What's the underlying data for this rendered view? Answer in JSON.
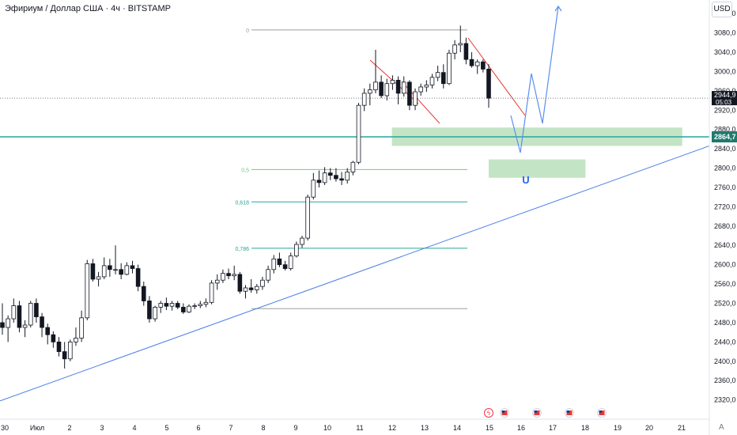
{
  "header": {
    "title": "Эфириум / Доллар США · 4ч · BITSTAMP",
    "currency": "USD",
    "auto_label": "A"
  },
  "colors": {
    "up_candle": "#ffffff",
    "down_candle": "#131722",
    "trend_line": "#4a7ee8",
    "current_line": "#26a69a",
    "fib_line": "#7cc47c",
    "zone_fill": "#a5d6a7",
    "resistance_line": "#e53935",
    "projection": "#5a8ff0"
  },
  "chart_data": {
    "type": "candlestick",
    "symbol": "Эфириум / Доллар США",
    "timeframe": "4ч",
    "exchange": "BITSTAMP",
    "yaxis": {
      "ticks": [
        "3120,0",
        "3080,0",
        "3040,0",
        "3000,0",
        "2960,0",
        "2920,0",
        "2880,0",
        "2840,0",
        "2800,0",
        "2760,0",
        "2720,0",
        "2680,0",
        "2640,0",
        "2600,0",
        "2560,0",
        "2520,0",
        "2480,0",
        "2440,0",
        "2400,0",
        "2360,0",
        "2320,0"
      ],
      "range": [
        2310,
        3140
      ]
    },
    "xaxis": {
      "ticks": [
        "30",
        "Июл",
        "2",
        "3",
        "4",
        "5",
        "6",
        "7",
        "8",
        "9",
        "10",
        "11",
        "12",
        "13",
        "14",
        "15",
        "16",
        "17",
        "18",
        "19",
        "20",
        "21"
      ]
    },
    "last_price": {
      "value": "2944,9",
      "countdown": "05:03"
    },
    "horizontal_level": "2864,7",
    "fib_levels": [
      {
        "label": "0",
        "price": 3086
      },
      {
        "label": "0,5",
        "price": 2797
      },
      {
        "label": "0,618",
        "price": 2730
      },
      {
        "label": "0,786",
        "price": 2634
      },
      {
        "label": "",
        "price": 2509
      }
    ],
    "zones": [
      {
        "from_date": "Jul 12",
        "to_date": "Jul 21",
        "low": 2846,
        "high": 2884
      },
      {
        "from_date": "Jul 15",
        "to_date": "Jul 18",
        "low": 2780,
        "high": 2818
      }
    ],
    "trend_line": {
      "points": [
        [
          "Jun 29",
          2326
        ],
        [
          "Jul 21",
          2846
        ]
      ]
    },
    "resistance_lines": [
      {
        "points": [
          [
            "Jul 11",
            3044
          ],
          [
            "Jul 12",
            2992
          ]
        ]
      },
      {
        "points": [
          [
            "Jul 12",
            2995
          ],
          [
            "Jul 14",
            2956
          ]
        ]
      },
      {
        "points": [
          [
            "Jul 14",
            3092
          ],
          [
            "Jul 16",
            2958
          ]
        ]
      }
    ],
    "projection_path": [
      [
        "Jul 15",
        2950
      ],
      [
        "Jul 16",
        2858
      ],
      [
        "Jul 16",
        3015
      ],
      [
        "Jul 16",
        2910
      ],
      [
        "Jul 17",
        3135
      ]
    ],
    "event_icons": [
      "lightning",
      "flag-us",
      "flag-us",
      "flag-us",
      "flag-us"
    ],
    "candles": [
      [
        2480,
        2520,
        2455,
        2470
      ],
      [
        2470,
        2495,
        2440,
        2488
      ],
      [
        2488,
        2530,
        2480,
        2515
      ],
      [
        2515,
        2525,
        2460,
        2470
      ],
      [
        2470,
        2485,
        2450,
        2475
      ],
      [
        2475,
        2525,
        2470,
        2520
      ],
      [
        2520,
        2530,
        2480,
        2492
      ],
      [
        2492,
        2500,
        2450,
        2470
      ],
      [
        2470,
        2478,
        2435,
        2455
      ],
      [
        2455,
        2462,
        2428,
        2440
      ],
      [
        2440,
        2450,
        2410,
        2420
      ],
      [
        2420,
        2440,
        2385,
        2405
      ],
      [
        2405,
        2445,
        2400,
        2440
      ],
      [
        2440,
        2470,
        2432,
        2448
      ],
      [
        2448,
        2505,
        2440,
        2490
      ],
      [
        2490,
        2610,
        2485,
        2602
      ],
      [
        2602,
        2612,
        2565,
        2570
      ],
      [
        2570,
        2585,
        2555,
        2575
      ],
      [
        2575,
        2615,
        2570,
        2598
      ],
      [
        2598,
        2612,
        2575,
        2590
      ],
      [
        2590,
        2640,
        2580,
        2590
      ],
      [
        2590,
        2603,
        2570,
        2580
      ],
      [
        2580,
        2605,
        2578,
        2598
      ],
      [
        2598,
        2608,
        2582,
        2592
      ],
      [
        2592,
        2600,
        2545,
        2555
      ],
      [
        2555,
        2565,
        2515,
        2525
      ],
      [
        2525,
        2535,
        2480,
        2488
      ],
      [
        2488,
        2515,
        2482,
        2512
      ],
      [
        2512,
        2525,
        2500,
        2520
      ],
      [
        2520,
        2532,
        2506,
        2514
      ],
      [
        2514,
        2525,
        2505,
        2520
      ],
      [
        2520,
        2525,
        2508,
        2512
      ],
      [
        2512,
        2520,
        2498,
        2502
      ],
      [
        2502,
        2518,
        2500,
        2514
      ],
      [
        2514,
        2520,
        2508,
        2515
      ],
      [
        2515,
        2525,
        2510,
        2518
      ],
      [
        2518,
        2530,
        2512,
        2522
      ],
      [
        2522,
        2568,
        2518,
        2562
      ],
      [
        2562,
        2580,
        2548,
        2568
      ],
      [
        2568,
        2590,
        2562,
        2582
      ],
      [
        2582,
        2592,
        2570,
        2577
      ],
      [
        2577,
        2598,
        2568,
        2580
      ],
      [
        2580,
        2585,
        2540,
        2545
      ],
      [
        2545,
        2558,
        2530,
        2552
      ],
      [
        2552,
        2570,
        2542,
        2548
      ],
      [
        2548,
        2560,
        2540,
        2555
      ],
      [
        2555,
        2575,
        2548,
        2568
      ],
      [
        2568,
        2598,
        2562,
        2590
      ],
      [
        2590,
        2620,
        2582,
        2612
      ],
      [
        2612,
        2625,
        2595,
        2600
      ],
      [
        2600,
        2608,
        2588,
        2592
      ],
      [
        2592,
        2625,
        2588,
        2618
      ],
      [
        2618,
        2648,
        2615,
        2642
      ],
      [
        2642,
        2660,
        2635,
        2655
      ],
      [
        2655,
        2745,
        2650,
        2740
      ],
      [
        2740,
        2790,
        2735,
        2775
      ],
      [
        2775,
        2795,
        2760,
        2770
      ],
      [
        2770,
        2802,
        2765,
        2790
      ],
      [
        2790,
        2800,
        2775,
        2785
      ],
      [
        2785,
        2800,
        2772,
        2778
      ],
      [
        2778,
        2792,
        2765,
        2775
      ],
      [
        2775,
        2800,
        2768,
        2792
      ],
      [
        2792,
        2815,
        2785,
        2812
      ],
      [
        2812,
        2935,
        2808,
        2930
      ],
      [
        2930,
        2965,
        2918,
        2955
      ],
      [
        2955,
        2975,
        2930,
        2962
      ],
      [
        2962,
        3045,
        2955,
        2978
      ],
      [
        2978,
        2992,
        2945,
        2950
      ],
      [
        2950,
        2985,
        2940,
        2975
      ],
      [
        2975,
        2992,
        2962,
        2982
      ],
      [
        2982,
        2990,
        2932,
        2955
      ],
      [
        2955,
        2990,
        2948,
        2978
      ],
      [
        2978,
        2982,
        2920,
        2930
      ],
      [
        2930,
        2965,
        2920,
        2958
      ],
      [
        2958,
        2975,
        2950,
        2968
      ],
      [
        2968,
        2982,
        2958,
        2972
      ],
      [
        2972,
        2995,
        2965,
        2988
      ],
      [
        2988,
        3012,
        2980,
        2998
      ],
      [
        2998,
        3015,
        2965,
        2975
      ],
      [
        2975,
        3045,
        2972,
        3038
      ],
      [
        3038,
        3065,
        3025,
        3055
      ],
      [
        3055,
        3095,
        3040,
        3058
      ],
      [
        3058,
        3070,
        3015,
        3025
      ],
      [
        3025,
        3040,
        3008,
        3012
      ],
      [
        3012,
        3025,
        2995,
        3020
      ],
      [
        3020,
        3025,
        2998,
        3005
      ],
      [
        3005,
        3015,
        2925,
        2944.9
      ]
    ]
  }
}
